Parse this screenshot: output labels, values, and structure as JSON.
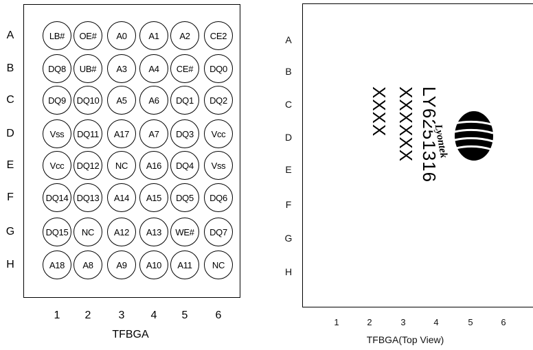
{
  "left_diagram": {
    "rows": [
      "A",
      "B",
      "C",
      "D",
      "E",
      "F",
      "G",
      "H"
    ],
    "cols": [
      "1",
      "2",
      "3",
      "4",
      "5",
      "6"
    ],
    "balls": [
      [
        "LB#",
        "OE#",
        "A0",
        "A1",
        "A2",
        "CE2"
      ],
      [
        "DQ8",
        "UB#",
        "A3",
        "A4",
        "CE#",
        "DQ0"
      ],
      [
        "DQ9",
        "DQ10",
        "A5",
        "A6",
        "DQ1",
        "DQ2"
      ],
      [
        "Vss",
        "DQ11",
        "A17",
        "A7",
        "DQ3",
        "Vcc"
      ],
      [
        "Vcc",
        "DQ12",
        "NC",
        "A16",
        "DQ4",
        "Vss"
      ],
      [
        "DQ14",
        "DQ13",
        "A14",
        "A15",
        "DQ5",
        "DQ6"
      ],
      [
        "DQ15",
        "NC",
        "A12",
        "A13",
        "WE#",
        "DQ7"
      ],
      [
        "A18",
        "A8",
        "A9",
        "A10",
        "A11",
        "NC"
      ]
    ],
    "caption": "TFBGA"
  },
  "right_diagram": {
    "rows": [
      "A",
      "B",
      "C",
      "D",
      "E",
      "F",
      "G",
      "H"
    ],
    "cols": [
      "1",
      "2",
      "3",
      "4",
      "5",
      "6"
    ],
    "marking_lines": [
      "LY6251316",
      "XXXXXX",
      "XXXX"
    ],
    "logo_text": "Lyontek",
    "caption": "TFBGA(Top View)"
  }
}
